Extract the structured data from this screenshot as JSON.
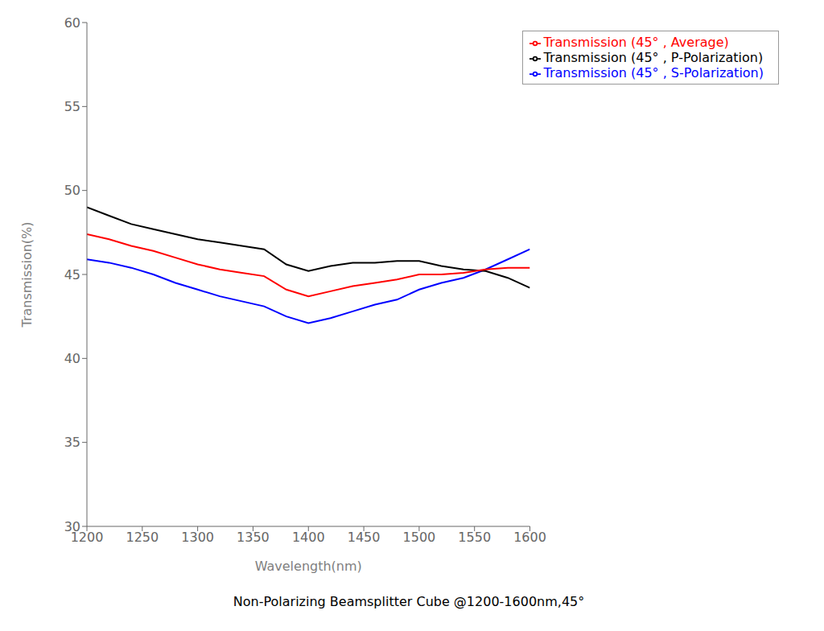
{
  "chart_data": {
    "type": "line",
    "title": "Non-Polarizing Beamsplitter Cube @1200-1600nm,45°",
    "xlabel": "Wavelength(nm)",
    "ylabel": "Transmission(%)",
    "x": [
      1200,
      1220,
      1240,
      1260,
      1280,
      1300,
      1320,
      1340,
      1360,
      1380,
      1400,
      1420,
      1440,
      1460,
      1480,
      1500,
      1520,
      1540,
      1560,
      1580,
      1600
    ],
    "series": [
      {
        "name": "Transmission (45° , S-Polarization)",
        "color": "#0000FF",
        "values": [
          45.9,
          45.7,
          45.4,
          45.0,
          44.5,
          44.1,
          43.7,
          43.4,
          43.1,
          42.5,
          42.1,
          42.4,
          42.8,
          43.2,
          43.5,
          44.1,
          44.5,
          44.8,
          45.3,
          45.9,
          46.5
        ]
      },
      {
        "name": "Transmission (45° , P-Polarization)",
        "color": "#000000",
        "values": [
          49.0,
          48.5,
          48.0,
          47.7,
          47.4,
          47.1,
          46.9,
          46.7,
          46.5,
          45.6,
          45.2,
          45.5,
          45.7,
          45.7,
          45.8,
          45.8,
          45.5,
          45.3,
          45.2,
          44.8,
          44.2
        ]
      },
      {
        "name": "Transmission (45° , Average)",
        "color": "#FF0000",
        "values": [
          47.4,
          47.1,
          46.7,
          46.4,
          46.0,
          45.6,
          45.3,
          45.1,
          44.9,
          44.1,
          43.7,
          44.0,
          44.3,
          44.5,
          44.7,
          45.0,
          45.0,
          45.1,
          45.3,
          45.4,
          45.4
        ]
      }
    ],
    "xlim": [
      1200,
      1600
    ],
    "ylim": [
      30,
      60
    ],
    "xticks": [
      1200,
      1250,
      1300,
      1350,
      1400,
      1450,
      1500,
      1550,
      1600
    ],
    "yticks": [
      30,
      35,
      40,
      45,
      50,
      55,
      60
    ],
    "grid": false,
    "legend": "upper right"
  }
}
